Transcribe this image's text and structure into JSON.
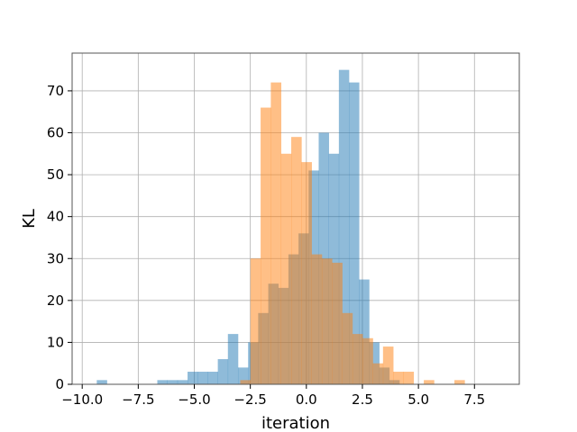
{
  "chart_data": {
    "type": "histogram",
    "xlabel": "iteration",
    "ylabel": "KL",
    "xlim": [
      -10.45,
      9.5
    ],
    "ylim": [
      0,
      79
    ],
    "grid": true,
    "x_ticks": [
      -10.0,
      -7.5,
      -5.0,
      -2.5,
      0.0,
      2.5,
      5.0,
      7.5
    ],
    "x_tick_labels": [
      "−10.0",
      "−7.5",
      "−5.0",
      "−2.5",
      "0.0",
      "2.5",
      "5.0",
      "7.5"
    ],
    "y_ticks": [
      0,
      10,
      20,
      30,
      40,
      50,
      60,
      70
    ],
    "y_tick_labels": [
      "0",
      "10",
      "20",
      "30",
      "40",
      "50",
      "60",
      "70"
    ],
    "series": [
      {
        "color": "#1f77b4",
        "opacity": 0.5,
        "bin_start": -9.35,
        "bin_width": 0.45,
        "counts": [
          1,
          0,
          0,
          0,
          0,
          0,
          1,
          1,
          1,
          3,
          3,
          3,
          6,
          12,
          4,
          10,
          17,
          24,
          23,
          31,
          36,
          51,
          60,
          55,
          75,
          72,
          25,
          10,
          4,
          1
        ]
      },
      {
        "color": "#ff7f0e",
        "opacity": 0.5,
        "bin_start": -2.95,
        "bin_width": 0.455,
        "counts": [
          1,
          30,
          66,
          72,
          55,
          59,
          53,
          31,
          30,
          29,
          17,
          12,
          11,
          5,
          9,
          3,
          3,
          0,
          1,
          0,
          0,
          1
        ]
      }
    ]
  }
}
